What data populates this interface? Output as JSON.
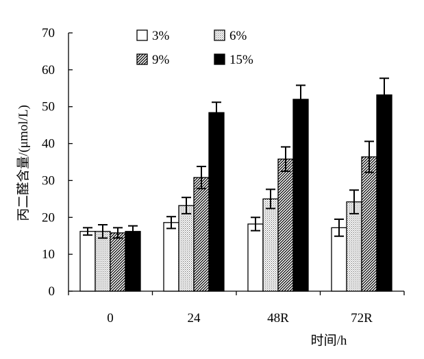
{
  "chart_data": {
    "type": "bar",
    "categories": [
      "0",
      "24",
      "48R",
      "72R"
    ],
    "xlabel": "时间/h",
    "ylabel": "丙二醛含量/(μmol/L)",
    "ylim": [
      0,
      70
    ],
    "yticks": [
      0,
      10,
      20,
      30,
      40,
      50,
      60,
      70
    ],
    "grid": false,
    "legend_position": "top",
    "error_bars": true,
    "series": [
      {
        "name": "3%",
        "pattern": "white",
        "values": [
          16.2,
          18.6,
          18.2,
          17.2
        ],
        "errors": [
          1.0,
          1.6,
          1.8,
          2.3
        ]
      },
      {
        "name": "6%",
        "pattern": "dotted",
        "values": [
          16.2,
          23.2,
          25.0,
          24.2
        ],
        "errors": [
          1.8,
          2.2,
          2.6,
          3.2
        ]
      },
      {
        "name": "9%",
        "pattern": "diagonal",
        "values": [
          15.8,
          30.8,
          35.8,
          36.4
        ],
        "errors": [
          1.4,
          3.0,
          3.3,
          4.2
        ]
      },
      {
        "name": "15%",
        "pattern": "black",
        "values": [
          16.2,
          48.4,
          52.0,
          53.2
        ],
        "errors": [
          1.5,
          2.8,
          3.8,
          4.5
        ]
      }
    ]
  }
}
